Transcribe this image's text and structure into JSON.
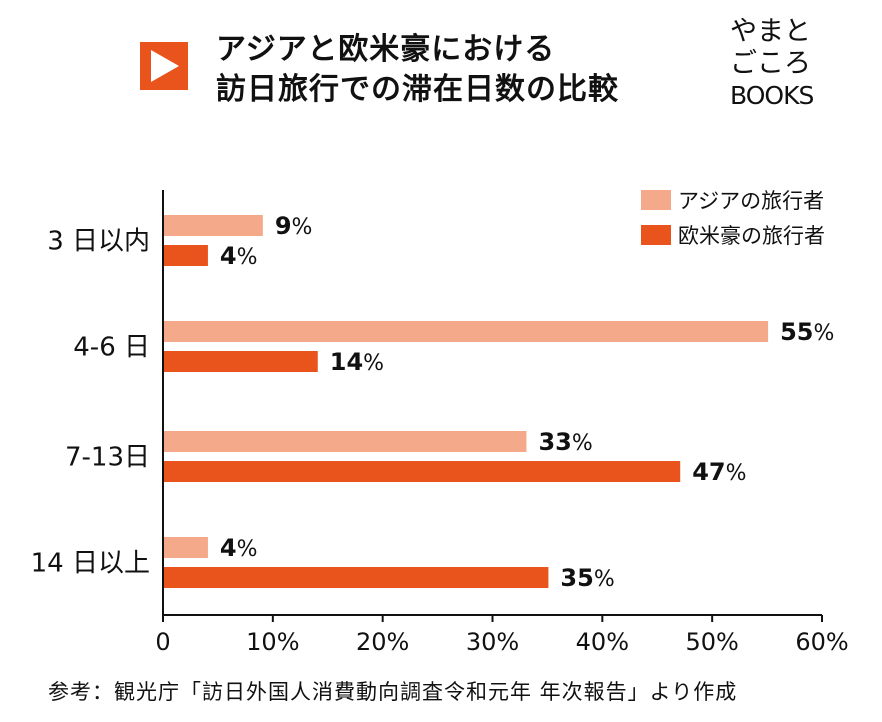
{
  "header": {
    "title_line1": "アジアと欧米豪における",
    "title_line2": "訪日旅行での滞在日数の比較",
    "logo_line1": "やまと",
    "logo_line2": "ごころ",
    "logo_line3": "BOOKS",
    "accent": "#E8541B"
  },
  "chart_data": {
    "type": "bar",
    "orientation": "horizontal",
    "categories": [
      "3 日以内",
      "4-6 日",
      "7-13日",
      "14 日以上"
    ],
    "series": [
      {
        "name": "アジアの旅行者",
        "values": [
          9,
          55,
          33,
          4
        ],
        "labels": [
          "9",
          "55",
          "33",
          "4"
        ],
        "color": "#F4A98A"
      },
      {
        "name": "欧米豪の旅行者",
        "values": [
          4,
          14,
          47,
          35
        ],
        "labels": [
          "4",
          "14",
          "47",
          "35"
        ],
        "color": "#E8541B"
      }
    ],
    "value_suffix": "%",
    "xlim": [
      0,
      60
    ],
    "xticks": [
      "0",
      "10%",
      "20%",
      "30%",
      "40%",
      "50%",
      "60%"
    ],
    "legend": "top-right",
    "grid": false
  },
  "footer": {
    "source": "参考：観光庁「訪日外国人消費動向調査令和元年 年次報告」より作成"
  }
}
